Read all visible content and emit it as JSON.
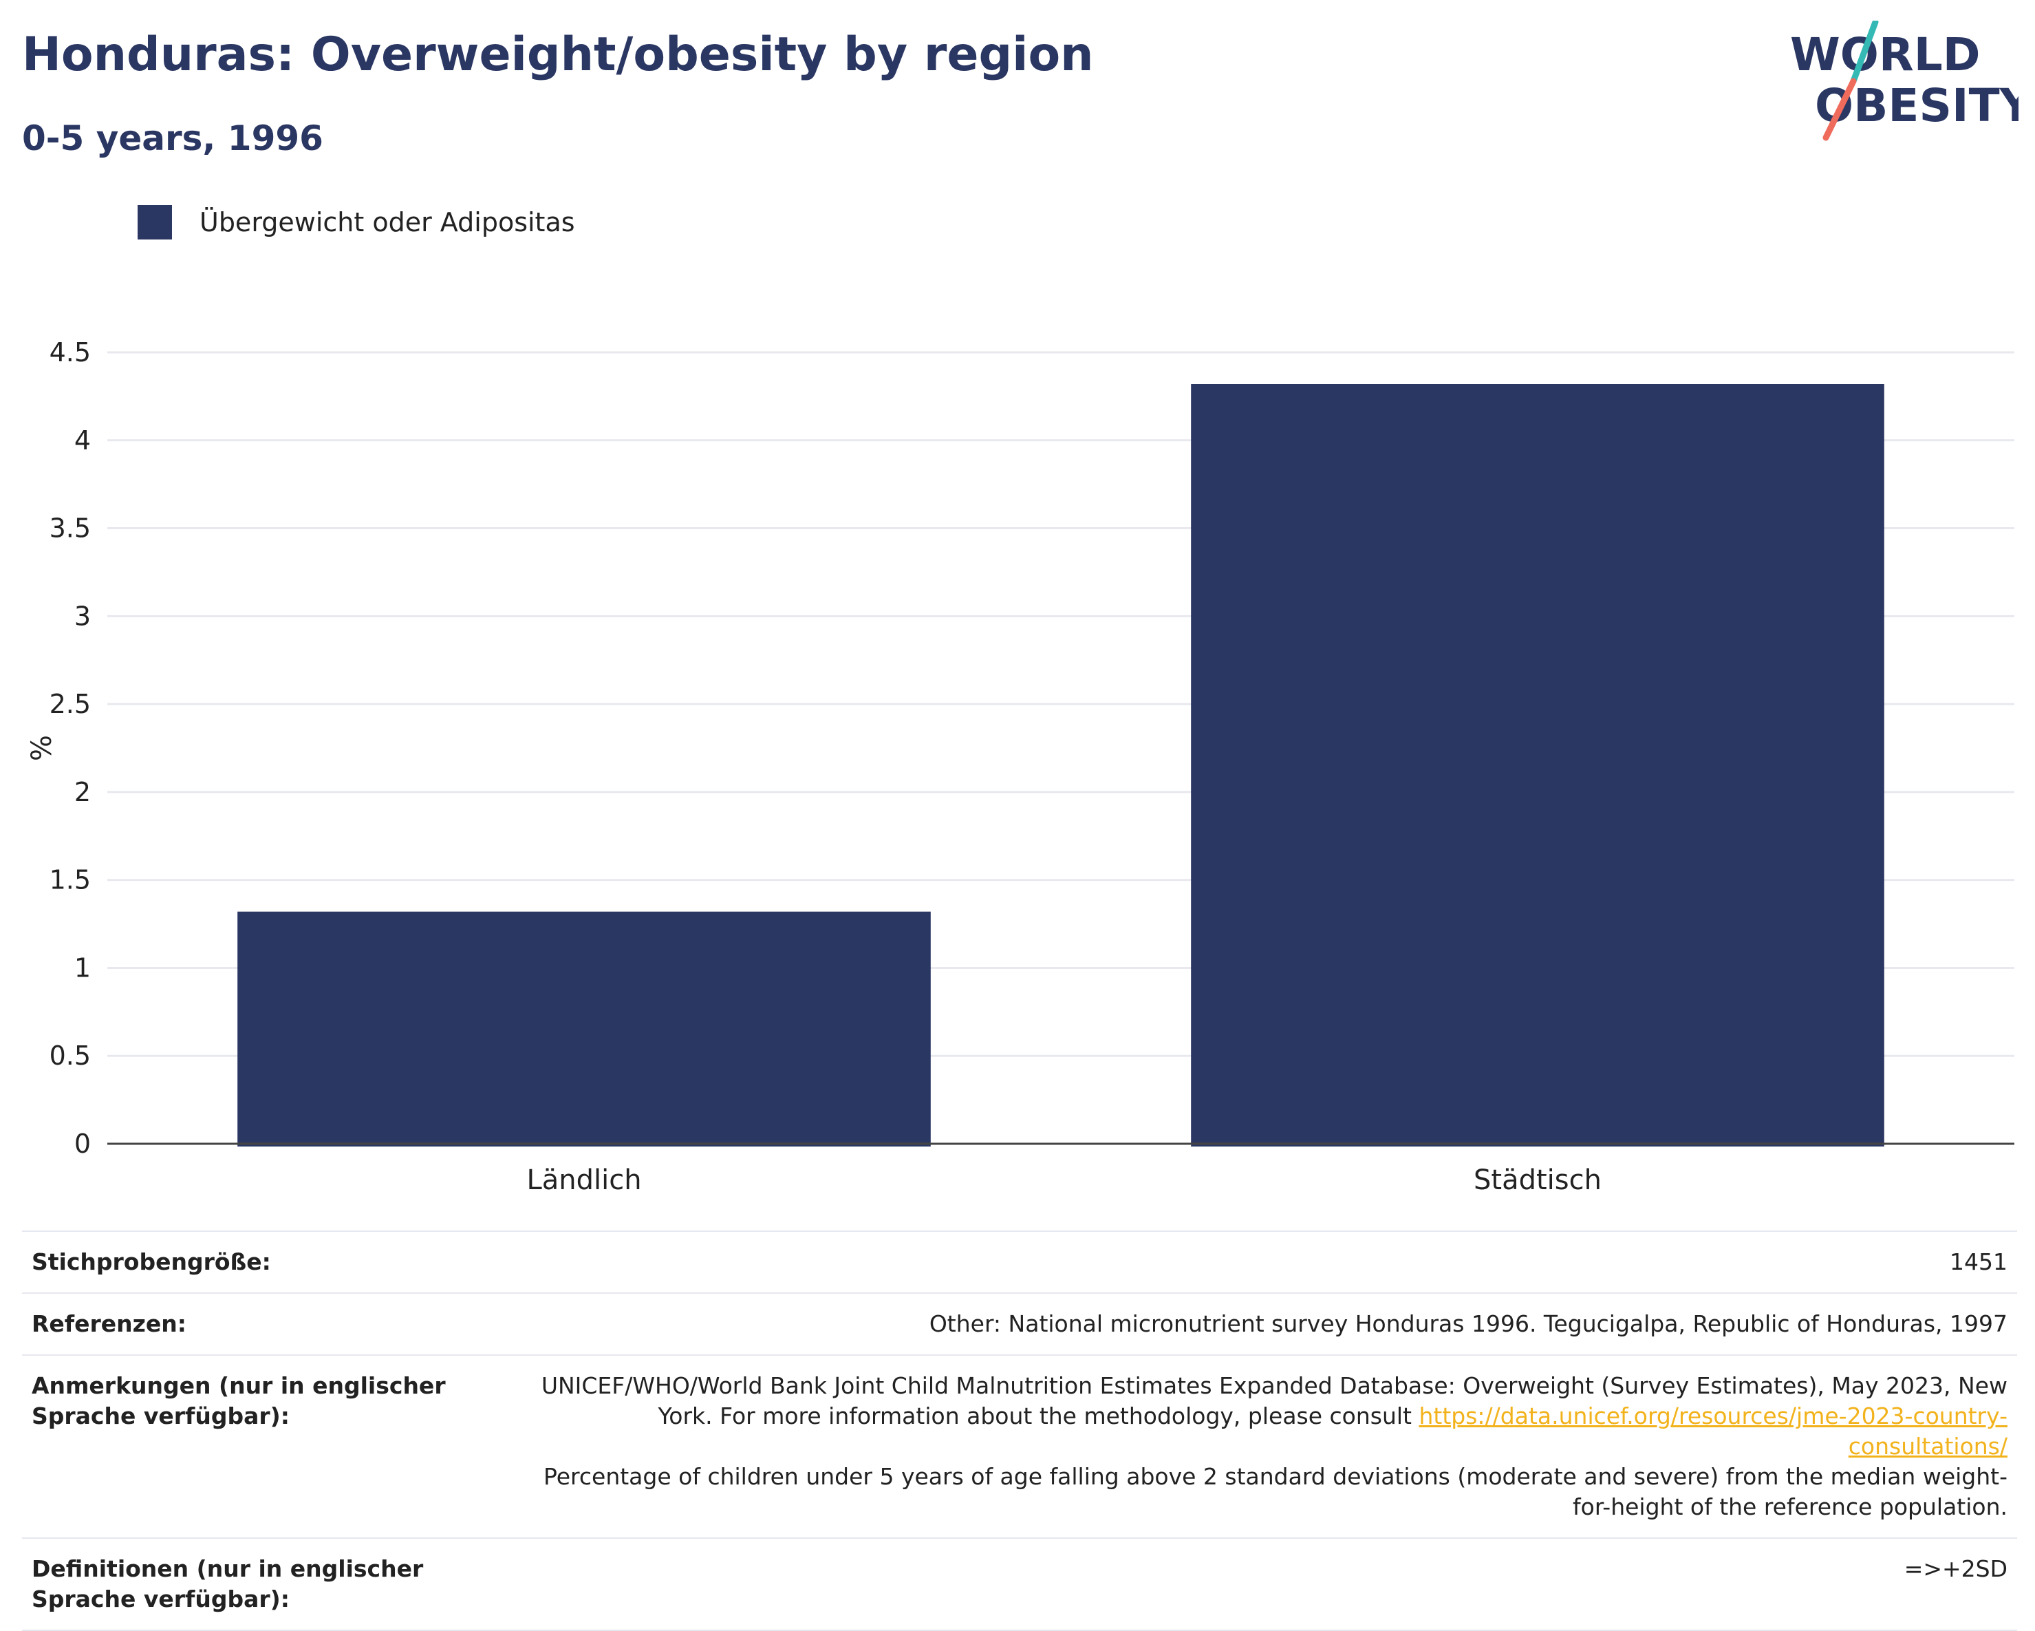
{
  "header": {
    "title": "Honduras: Overweight/obesity by region",
    "subtitle": "0-5 years, 1996"
  },
  "logo": {
    "line1": "WORLD",
    "line2": "OBESITY",
    "colors": {
      "text": "#2b3763",
      "slash_top": "#34b9b5",
      "slash_bottom": "#ef6b5b"
    }
  },
  "legend": {
    "label": "Übergewicht oder Adipositas",
    "color": "#2b3763"
  },
  "chart_data": {
    "type": "bar",
    "categories": [
      "Ländlich",
      "Städtisch"
    ],
    "series": [
      {
        "name": "Übergewicht oder Adipositas",
        "values": [
          1.32,
          4.32
        ],
        "color": "#2b3763"
      }
    ],
    "ylabel": "%",
    "ylim": [
      0,
      4.5
    ],
    "yticks": [
      "0",
      "0.5",
      "1",
      "1.5",
      "2",
      "2.5",
      "3",
      "3.5",
      "4",
      "4.5"
    ],
    "grid": true,
    "legend_position": "top-left"
  },
  "info": {
    "sample_label": "Stichprobengröße:",
    "sample_value": "1451",
    "references_label": "Referenzen:",
    "references_value": "Other: National micronutrient survey Honduras 1996. Tegucigalpa, Republic of Honduras, 1997",
    "notes_label": "Anmerkungen (nur in englischer Sprache verfügbar):",
    "notes_text1": "UNICEF/WHO/World Bank Joint Child Malnutrition Estimates Expanded Database: Overweight (Survey Estimates), May 2023, New York. For more information about the methodology, please consult",
    "notes_link": "https://data.unicef.org/resources/jme-2023-country-consultations/",
    "notes_text2": "Percentage of children under 5 years of age falling above 2 standard deviations (moderate and severe) from the median weight-for-height of the reference population.",
    "definitions_label": "Definitionen (nur in englischer Sprache verfügbar):",
    "definitions_value": "=>+2SD"
  }
}
